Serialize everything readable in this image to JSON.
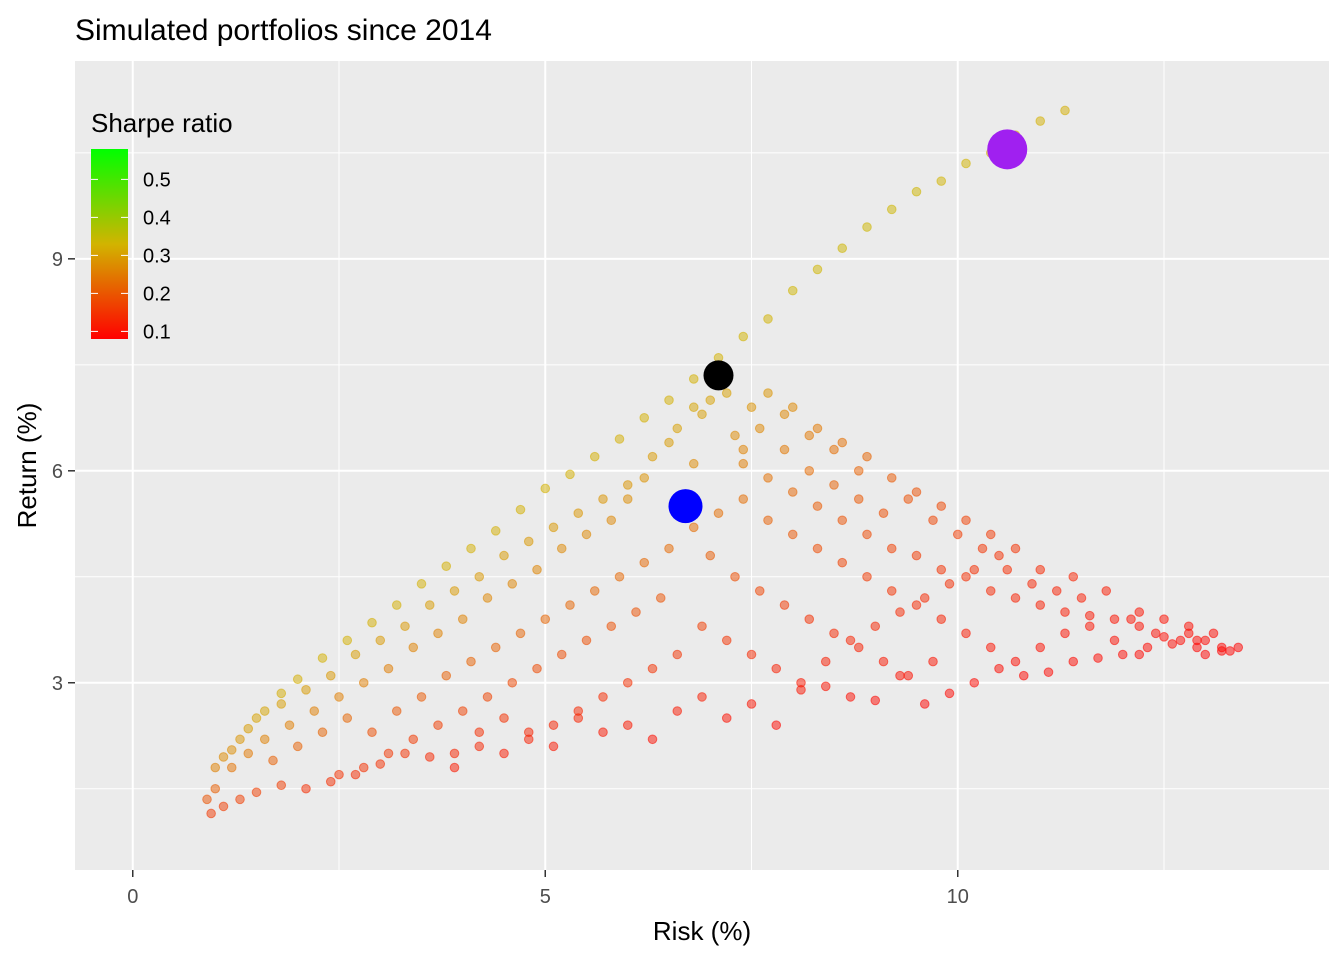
{
  "chart_data": {
    "type": "scatter",
    "title": "Simulated portfolios since 2014",
    "xlabel": "Risk (%)",
    "ylabel": "Return (%)",
    "xlim": [
      -0.7,
      14.5
    ],
    "ylim": [
      0.35,
      11.8
    ],
    "x_ticks": [
      0,
      5,
      10
    ],
    "y_ticks": [
      3,
      6,
      9
    ],
    "x_tick_labels": [
      "0",
      "5",
      "10"
    ],
    "y_tick_labels": [
      "3",
      "6",
      "9"
    ],
    "grid": true,
    "legend": {
      "title": "Sharpe ratio",
      "placement": "top-left inside",
      "type": "color-gradient",
      "labels": [
        "0.5",
        "0.4",
        "0.3",
        "0.2",
        "0.1"
      ],
      "label_values": [
        0.5,
        0.4,
        0.3,
        0.2,
        0.1
      ],
      "range": [
        0.08,
        0.58
      ],
      "colors": [
        "#00ff00",
        "#d2b400",
        "#ff0000"
      ]
    },
    "highlight_points": [
      {
        "x": 10.6,
        "y": 10.55,
        "color": "#a020f0"
      },
      {
        "x": 7.1,
        "y": 7.35,
        "color": "#000000"
      },
      {
        "x": 6.7,
        "y": 5.5,
        "color": "#0000ff"
      }
    ],
    "efficient_frontier": [
      [
        0.9,
        1.35
      ],
      [
        1.0,
        1.8
      ],
      [
        1.2,
        2.05
      ],
      [
        1.4,
        2.35
      ],
      [
        1.6,
        2.6
      ],
      [
        1.8,
        2.85
      ],
      [
        2.0,
        3.05
      ],
      [
        2.3,
        3.35
      ],
      [
        2.6,
        3.6
      ],
      [
        2.9,
        3.85
      ],
      [
        3.2,
        4.1
      ],
      [
        3.5,
        4.4
      ],
      [
        3.8,
        4.65
      ],
      [
        4.1,
        4.9
      ],
      [
        4.4,
        5.15
      ],
      [
        4.7,
        5.45
      ],
      [
        5.0,
        5.75
      ],
      [
        5.3,
        5.95
      ],
      [
        5.6,
        6.2
      ],
      [
        5.9,
        6.45
      ],
      [
        6.2,
        6.75
      ],
      [
        6.5,
        7.0
      ],
      [
        6.8,
        7.3
      ],
      [
        7.1,
        7.6
      ],
      [
        7.4,
        7.9
      ],
      [
        7.7,
        8.15
      ],
      [
        8.0,
        8.55
      ],
      [
        8.3,
        8.85
      ],
      [
        8.6,
        9.15
      ],
      [
        8.9,
        9.45
      ],
      [
        9.2,
        9.7
      ],
      [
        9.5,
        9.95
      ],
      [
        9.8,
        10.1
      ],
      [
        10.1,
        10.35
      ],
      [
        10.4,
        10.5
      ],
      [
        10.7,
        10.75
      ],
      [
        11.0,
        10.95
      ],
      [
        11.3,
        11.1
      ]
    ],
    "scatter_points": [
      [
        0.95,
        1.15
      ],
      [
        1.1,
        1.25
      ],
      [
        1.3,
        1.35
      ],
      [
        1.5,
        1.45
      ],
      [
        1.8,
        1.55
      ],
      [
        2.1,
        1.5
      ],
      [
        2.4,
        1.6
      ],
      [
        2.7,
        1.7
      ],
      [
        3.0,
        1.85
      ],
      [
        3.3,
        2.0
      ],
      [
        3.6,
        1.95
      ],
      [
        3.9,
        1.8
      ],
      [
        4.2,
        2.1
      ],
      [
        4.5,
        2.0
      ],
      [
        4.8,
        2.3
      ],
      [
        5.1,
        2.1
      ],
      [
        5.4,
        2.5
      ],
      [
        5.7,
        2.3
      ],
      [
        6.0,
        2.4
      ],
      [
        6.3,
        2.2
      ],
      [
        6.6,
        2.6
      ],
      [
        6.9,
        2.8
      ],
      [
        7.2,
        2.5
      ],
      [
        7.5,
        2.7
      ],
      [
        7.8,
        2.4
      ],
      [
        8.1,
        2.9
      ],
      [
        8.4,
        2.95
      ],
      [
        8.7,
        2.8
      ],
      [
        9.0,
        2.75
      ],
      [
        9.3,
        3.1
      ],
      [
        9.6,
        2.7
      ],
      [
        9.9,
        2.85
      ],
      [
        10.2,
        3.0
      ],
      [
        10.5,
        3.2
      ],
      [
        10.8,
        3.1
      ],
      [
        11.1,
        3.15
      ],
      [
        11.4,
        3.3
      ],
      [
        11.7,
        3.35
      ],
      [
        12.0,
        3.4
      ],
      [
        12.3,
        3.5
      ],
      [
        12.6,
        3.55
      ],
      [
        12.9,
        3.6
      ],
      [
        13.2,
        3.45
      ],
      [
        13.4,
        3.5
      ],
      [
        13.0,
        3.6
      ],
      [
        12.8,
        3.7
      ],
      [
        12.5,
        3.65
      ],
      [
        12.2,
        3.8
      ],
      [
        11.9,
        3.9
      ],
      [
        11.6,
        3.95
      ],
      [
        11.3,
        4.0
      ],
      [
        11.0,
        4.1
      ],
      [
        10.7,
        4.2
      ],
      [
        10.4,
        4.3
      ],
      [
        10.1,
        4.5
      ],
      [
        9.8,
        4.6
      ],
      [
        9.5,
        4.8
      ],
      [
        9.2,
        4.9
      ],
      [
        8.9,
        5.1
      ],
      [
        8.6,
        5.3
      ],
      [
        8.3,
        5.5
      ],
      [
        8.0,
        5.7
      ],
      [
        7.7,
        5.9
      ],
      [
        7.4,
        6.1
      ],
      [
        7.3,
        6.5
      ],
      [
        7.5,
        6.9
      ],
      [
        7.7,
        7.1
      ],
      [
        8.0,
        6.9
      ],
      [
        8.3,
        6.6
      ],
      [
        8.6,
        6.4
      ],
      [
        8.9,
        6.2
      ],
      [
        9.2,
        5.9
      ],
      [
        9.5,
        5.7
      ],
      [
        9.8,
        5.5
      ],
      [
        10.1,
        5.3
      ],
      [
        10.4,
        5.1
      ],
      [
        10.7,
        4.9
      ],
      [
        11.0,
        4.6
      ],
      [
        11.4,
        4.5
      ],
      [
        11.8,
        4.3
      ],
      [
        12.2,
        4.0
      ],
      [
        12.5,
        3.9
      ],
      [
        12.8,
        3.8
      ],
      [
        13.1,
        3.7
      ],
      [
        6.5,
        6.4
      ],
      [
        6.8,
        6.1
      ],
      [
        6.2,
        5.9
      ],
      [
        6.0,
        5.6
      ],
      [
        5.8,
        5.3
      ],
      [
        5.5,
        5.1
      ],
      [
        5.2,
        4.9
      ],
      [
        4.9,
        4.6
      ],
      [
        4.6,
        4.4
      ],
      [
        4.3,
        4.2
      ],
      [
        4.0,
        3.9
      ],
      [
        3.7,
        3.7
      ],
      [
        3.4,
        3.5
      ],
      [
        3.1,
        3.2
      ],
      [
        2.8,
        3.0
      ],
      [
        2.5,
        2.8
      ],
      [
        2.2,
        2.6
      ],
      [
        1.9,
        2.4
      ],
      [
        1.6,
        2.2
      ],
      [
        1.4,
        2.0
      ],
      [
        1.2,
        1.8
      ],
      [
        1.0,
        1.5
      ],
      [
        1.7,
        1.9
      ],
      [
        2.0,
        2.1
      ],
      [
        2.3,
        2.3
      ],
      [
        2.6,
        2.5
      ],
      [
        2.9,
        2.3
      ],
      [
        3.2,
        2.6
      ],
      [
        3.5,
        2.8
      ],
      [
        3.8,
        3.1
      ],
      [
        4.1,
        3.3
      ],
      [
        4.4,
        3.5
      ],
      [
        4.7,
        3.7
      ],
      [
        5.0,
        3.9
      ],
      [
        5.3,
        4.1
      ],
      [
        5.6,
        4.3
      ],
      [
        5.9,
        4.5
      ],
      [
        6.2,
        4.7
      ],
      [
        6.5,
        4.9
      ],
      [
        6.8,
        5.2
      ],
      [
        7.1,
        5.4
      ],
      [
        7.4,
        5.6
      ],
      [
        7.7,
        5.3
      ],
      [
        8.0,
        5.1
      ],
      [
        8.3,
        4.9
      ],
      [
        8.6,
        4.7
      ],
      [
        8.9,
        4.5
      ],
      [
        9.2,
        4.3
      ],
      [
        9.5,
        4.1
      ],
      [
        9.8,
        3.9
      ],
      [
        10.1,
        3.7
      ],
      [
        10.4,
        3.5
      ],
      [
        10.7,
        3.3
      ],
      [
        11.0,
        3.5
      ],
      [
        11.3,
        3.7
      ],
      [
        11.6,
        3.8
      ],
      [
        11.9,
        3.6
      ],
      [
        12.2,
        3.4
      ],
      [
        7.0,
        4.8
      ],
      [
        7.3,
        4.5
      ],
      [
        7.6,
        4.3
      ],
      [
        7.9,
        4.1
      ],
      [
        8.2,
        3.9
      ],
      [
        8.5,
        3.7
      ],
      [
        8.8,
        3.5
      ],
      [
        9.1,
        3.3
      ],
      [
        9.4,
        3.1
      ],
      [
        9.7,
        3.3
      ],
      [
        6.4,
        4.2
      ],
      [
        6.1,
        4.0
      ],
      [
        5.8,
        3.8
      ],
      [
        5.5,
        3.6
      ],
      [
        5.2,
        3.4
      ],
      [
        4.9,
        3.2
      ],
      [
        4.6,
        3.0
      ],
      [
        4.3,
        2.8
      ],
      [
        4.0,
        2.6
      ],
      [
        3.7,
        2.4
      ],
      [
        3.4,
        2.2
      ],
      [
        3.1,
        2.0
      ],
      [
        2.8,
        1.8
      ],
      [
        2.5,
        1.7
      ],
      [
        6.9,
        3.8
      ],
      [
        7.2,
        3.6
      ],
      [
        7.5,
        3.4
      ],
      [
        7.8,
        3.2
      ],
      [
        8.1,
        3.0
      ],
      [
        8.4,
        3.3
      ],
      [
        8.7,
        3.6
      ],
      [
        9.0,
        3.8
      ],
      [
        9.3,
        4.0
      ],
      [
        9.6,
        4.2
      ],
      [
        9.9,
        4.4
      ],
      [
        10.2,
        4.6
      ],
      [
        10.5,
        4.8
      ],
      [
        6.6,
        3.4
      ],
      [
        6.3,
        3.2
      ],
      [
        6.0,
        3.0
      ],
      [
        5.7,
        2.8
      ],
      [
        5.4,
        2.6
      ],
      [
        5.1,
        2.4
      ],
      [
        4.8,
        2.2
      ],
      [
        4.5,
        2.5
      ],
      [
        4.2,
        2.3
      ],
      [
        3.9,
        2.0
      ],
      [
        7.9,
        6.3
      ],
      [
        8.2,
        6.0
      ],
      [
        8.5,
        5.8
      ],
      [
        8.8,
        5.6
      ],
      [
        9.1,
        5.4
      ],
      [
        7.6,
        6.6
      ],
      [
        6.9,
        6.8
      ],
      [
        6.6,
        6.6
      ],
      [
        6.3,
        6.2
      ],
      [
        6.0,
        5.8
      ],
      [
        5.7,
        5.6
      ],
      [
        5.4,
        5.4
      ],
      [
        5.1,
        5.2
      ],
      [
        4.8,
        5.0
      ],
      [
        4.5,
        4.8
      ],
      [
        4.2,
        4.5
      ],
      [
        3.9,
        4.3
      ],
      [
        3.6,
        4.1
      ],
      [
        3.3,
        3.8
      ],
      [
        3.0,
        3.6
      ],
      [
        2.7,
        3.4
      ],
      [
        2.4,
        3.1
      ],
      [
        2.1,
        2.9
      ],
      [
        1.8,
        2.7
      ],
      [
        1.5,
        2.5
      ],
      [
        1.3,
        2.2
      ],
      [
        1.1,
        1.95
      ],
      [
        13.3,
        3.45
      ],
      [
        13.2,
        3.5
      ],
      [
        13.0,
        3.4
      ],
      [
        12.9,
        3.5
      ],
      [
        12.7,
        3.6
      ],
      [
        12.4,
        3.7
      ],
      [
        12.1,
        3.9
      ],
      [
        11.5,
        4.2
      ],
      [
        11.2,
        4.3
      ],
      [
        10.9,
        4.4
      ],
      [
        10.6,
        4.6
      ],
      [
        10.3,
        4.9
      ],
      [
        10.0,
        5.1
      ],
      [
        9.7,
        5.3
      ],
      [
        9.4,
        5.6
      ],
      [
        8.8,
        6.0
      ],
      [
        8.5,
        6.3
      ],
      [
        8.2,
        6.5
      ],
      [
        7.9,
        6.8
      ],
      [
        7.2,
        7.1
      ],
      [
        7.0,
        7.0
      ],
      [
        6.8,
        6.9
      ],
      [
        7.4,
        6.3
      ]
    ]
  }
}
